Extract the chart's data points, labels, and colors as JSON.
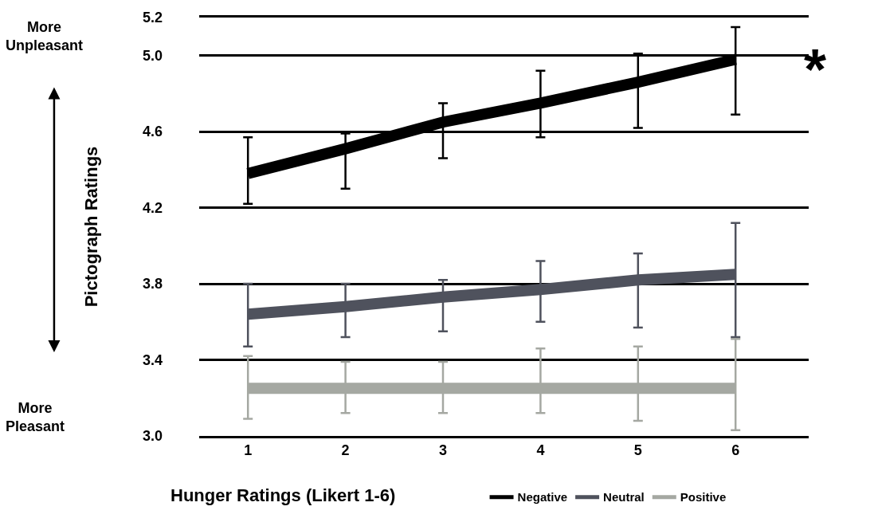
{
  "chart_data": {
    "type": "line",
    "xlabel": "Hunger Ratings (Likert 1-6)",
    "ylabel": "Pictograph Ratings",
    "categories": [
      "1",
      "2",
      "3",
      "4",
      "5",
      "6"
    ],
    "series": [
      {
        "name": "Negative",
        "color": "#000000",
        "values": [
          4.38,
          4.51,
          4.65,
          4.75,
          4.86,
          4.98
        ],
        "errors": [
          [
            4.22,
            4.57
          ],
          [
            4.3,
            4.59
          ],
          [
            4.46,
            4.75
          ],
          [
            4.57,
            4.92
          ],
          [
            4.62,
            5.01
          ],
          [
            4.69,
            5.15
          ]
        ]
      },
      {
        "name": "Neutral",
        "color": "#4f525d",
        "values": [
          3.64,
          3.68,
          3.73,
          3.77,
          3.82,
          3.85
        ],
        "errors": [
          [
            3.47,
            3.8
          ],
          [
            3.52,
            3.8
          ],
          [
            3.55,
            3.82
          ],
          [
            3.6,
            3.92
          ],
          [
            3.57,
            3.96
          ],
          [
            3.52,
            4.12
          ]
        ]
      },
      {
        "name": "Positive",
        "color": "#a5a8a2",
        "values": [
          3.25,
          3.25,
          3.25,
          3.25,
          3.25,
          3.25
        ],
        "errors": [
          [
            3.09,
            3.42
          ],
          [
            3.12,
            3.39
          ],
          [
            3.12,
            3.39
          ],
          [
            3.12,
            3.46
          ],
          [
            3.08,
            3.47
          ],
          [
            3.03,
            3.51
          ]
        ]
      }
    ],
    "ylim": [
      3.0,
      5.2
    ],
    "yticks": [
      {
        "value": 3.0,
        "label": "3.0"
      },
      3.4,
      3.8,
      4.2,
      4.6,
      {
        "value": 5.0,
        "label": "5.0"
      },
      5.2
    ],
    "grid": "y",
    "legend": "bottom",
    "marker": "none",
    "line_style": "solid",
    "annotations": [
      "More Unpleasant",
      "More Pleasant",
      {
        "text": "*",
        "x": "6",
        "y": 4.98
      }
    ]
  }
}
